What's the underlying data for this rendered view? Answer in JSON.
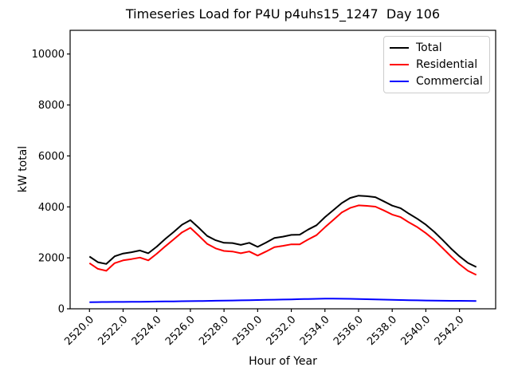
{
  "figure": {
    "background": "#ffffff",
    "axes_color": "#000000"
  },
  "chart_data": {
    "type": "line",
    "title": "Timeseries Load for P4U p4uhs15_1247  Day 106",
    "xlabel": "Hour of Year",
    "ylabel": "kW total",
    "grid": false,
    "legend_position": "upper right",
    "xlim": [
      2518.85,
      2544.15
    ],
    "ylim": [
      0,
      10930
    ],
    "xtick_rotation": 45,
    "xtick_values": [
      2520,
      2522,
      2524,
      2526,
      2528,
      2530,
      2532,
      2534,
      2536,
      2538,
      2540,
      2542
    ],
    "xtick_labels": [
      "2520.0",
      "2522.0",
      "2524.0",
      "2526.0",
      "2528.0",
      "2530.0",
      "2532.0",
      "2534.0",
      "2536.0",
      "2538.0",
      "2540.0",
      "2542.0"
    ],
    "ytick_values": [
      0,
      2000,
      4000,
      6000,
      8000,
      10000
    ],
    "ytick_labels": [
      "0",
      "2000",
      "4000",
      "6000",
      "8000",
      "10000"
    ],
    "x": [
      2520.0,
      2520.5,
      2521.0,
      2521.5,
      2522.0,
      2522.5,
      2523.0,
      2523.5,
      2524.0,
      2524.5,
      2525.0,
      2525.5,
      2526.0,
      2526.5,
      2527.0,
      2527.5,
      2528.0,
      2528.5,
      2529.0,
      2529.5,
      2530.0,
      2530.5,
      2531.0,
      2531.5,
      2532.0,
      2532.5,
      2533.0,
      2533.5,
      2534.0,
      2534.5,
      2535.0,
      2535.5,
      2536.0,
      2536.5,
      2537.0,
      2537.5,
      2538.0,
      2538.5,
      2539.0,
      2539.5,
      2540.0,
      2540.5,
      2541.0,
      2541.5,
      2542.0,
      2542.5,
      2543.0
    ],
    "series": [
      {
        "name": "Total",
        "color": "#000000",
        "values": [
          2050,
          1830,
          1760,
          2060,
          2170,
          2220,
          2290,
          2180,
          2440,
          2740,
          3010,
          3300,
          3480,
          3180,
          2860,
          2690,
          2590,
          2580,
          2510,
          2590,
          2430,
          2600,
          2780,
          2830,
          2900,
          2910,
          3110,
          3280,
          3600,
          3870,
          4150,
          4350,
          4440,
          4420,
          4380,
          4220,
          4050,
          3950,
          3730,
          3530,
          3300,
          3020,
          2700,
          2360,
          2060,
          1800,
          1640
        ]
      },
      {
        "name": "Residential",
        "color": "#ff0000",
        "values": [
          1790,
          1570,
          1490,
          1790,
          1900,
          1950,
          2010,
          1900,
          2160,
          2450,
          2720,
          3000,
          3180,
          2870,
          2550,
          2370,
          2270,
          2250,
          2180,
          2250,
          2090,
          2250,
          2420,
          2470,
          2530,
          2530,
          2720,
          2890,
          3200,
          3490,
          3780,
          3960,
          4060,
          4040,
          4010,
          3860,
          3700,
          3600,
          3390,
          3200,
          2970,
          2700,
          2380,
          2050,
          1750,
          1490,
          1330
        ]
      },
      {
        "name": "Commercial",
        "color": "#0000ff",
        "values": [
          260,
          262,
          265,
          268,
          270,
          273,
          276,
          280,
          284,
          288,
          292,
          296,
          300,
          305,
          310,
          315,
          320,
          326,
          332,
          338,
          344,
          350,
          356,
          362,
          370,
          378,
          385,
          392,
          398,
          400,
          396,
          390,
          383,
          375,
          368,
          360,
          352,
          345,
          338,
          332,
          326,
          321,
          317,
          314,
          312,
          310,
          308
        ]
      }
    ]
  }
}
